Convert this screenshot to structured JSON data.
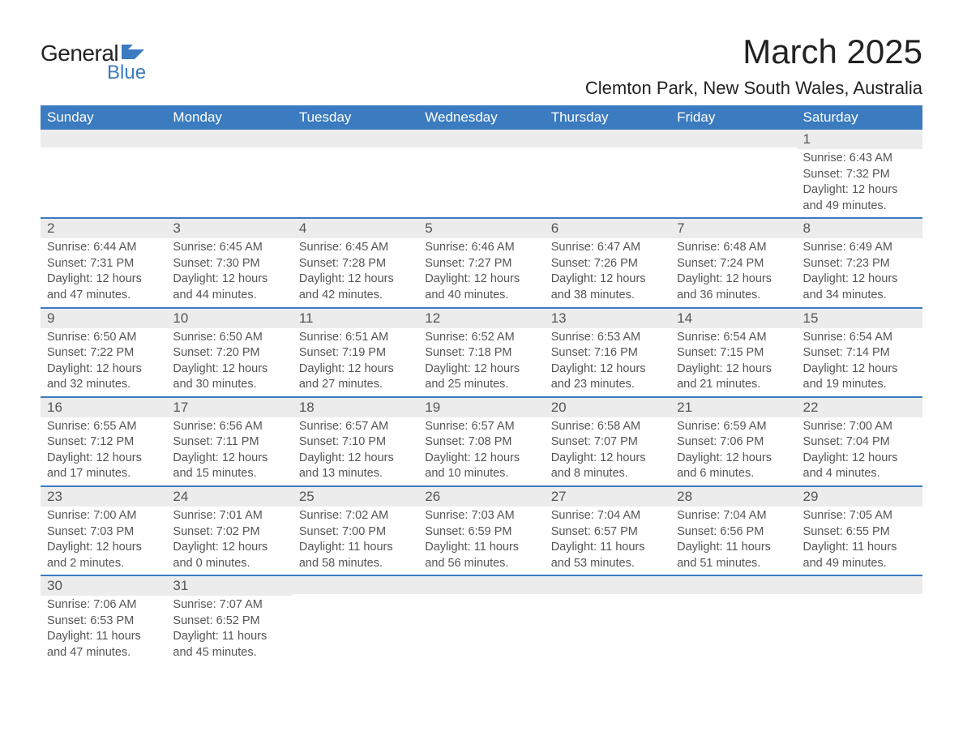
{
  "logo": {
    "general": "General",
    "blue": "Blue",
    "shape_color": "#3b7bbf"
  },
  "title": "March 2025",
  "location": "Clemton Park, New South Wales, Australia",
  "columns": [
    "Sunday",
    "Monday",
    "Tuesday",
    "Wednesday",
    "Thursday",
    "Friday",
    "Saturday"
  ],
  "colors": {
    "header_bg": "#3b7bbf",
    "header_fg": "#ffffff",
    "daynum_bg": "#ececec",
    "border": "#3b7bbf",
    "text": "#555555"
  },
  "weeks": [
    [
      {
        "day": "",
        "sunrise": "",
        "sunset": "",
        "daylight": ""
      },
      {
        "day": "",
        "sunrise": "",
        "sunset": "",
        "daylight": ""
      },
      {
        "day": "",
        "sunrise": "",
        "sunset": "",
        "daylight": ""
      },
      {
        "day": "",
        "sunrise": "",
        "sunset": "",
        "daylight": ""
      },
      {
        "day": "",
        "sunrise": "",
        "sunset": "",
        "daylight": ""
      },
      {
        "day": "",
        "sunrise": "",
        "sunset": "",
        "daylight": ""
      },
      {
        "day": "1",
        "sunrise": "Sunrise: 6:43 AM",
        "sunset": "Sunset: 7:32 PM",
        "daylight": "Daylight: 12 hours and 49 minutes."
      }
    ],
    [
      {
        "day": "2",
        "sunrise": "Sunrise: 6:44 AM",
        "sunset": "Sunset: 7:31 PM",
        "daylight": "Daylight: 12 hours and 47 minutes."
      },
      {
        "day": "3",
        "sunrise": "Sunrise: 6:45 AM",
        "sunset": "Sunset: 7:30 PM",
        "daylight": "Daylight: 12 hours and 44 minutes."
      },
      {
        "day": "4",
        "sunrise": "Sunrise: 6:45 AM",
        "sunset": "Sunset: 7:28 PM",
        "daylight": "Daylight: 12 hours and 42 minutes."
      },
      {
        "day": "5",
        "sunrise": "Sunrise: 6:46 AM",
        "sunset": "Sunset: 7:27 PM",
        "daylight": "Daylight: 12 hours and 40 minutes."
      },
      {
        "day": "6",
        "sunrise": "Sunrise: 6:47 AM",
        "sunset": "Sunset: 7:26 PM",
        "daylight": "Daylight: 12 hours and 38 minutes."
      },
      {
        "day": "7",
        "sunrise": "Sunrise: 6:48 AM",
        "sunset": "Sunset: 7:24 PM",
        "daylight": "Daylight: 12 hours and 36 minutes."
      },
      {
        "day": "8",
        "sunrise": "Sunrise: 6:49 AM",
        "sunset": "Sunset: 7:23 PM",
        "daylight": "Daylight: 12 hours and 34 minutes."
      }
    ],
    [
      {
        "day": "9",
        "sunrise": "Sunrise: 6:50 AM",
        "sunset": "Sunset: 7:22 PM",
        "daylight": "Daylight: 12 hours and 32 minutes."
      },
      {
        "day": "10",
        "sunrise": "Sunrise: 6:50 AM",
        "sunset": "Sunset: 7:20 PM",
        "daylight": "Daylight: 12 hours and 30 minutes."
      },
      {
        "day": "11",
        "sunrise": "Sunrise: 6:51 AM",
        "sunset": "Sunset: 7:19 PM",
        "daylight": "Daylight: 12 hours and 27 minutes."
      },
      {
        "day": "12",
        "sunrise": "Sunrise: 6:52 AM",
        "sunset": "Sunset: 7:18 PM",
        "daylight": "Daylight: 12 hours and 25 minutes."
      },
      {
        "day": "13",
        "sunrise": "Sunrise: 6:53 AM",
        "sunset": "Sunset: 7:16 PM",
        "daylight": "Daylight: 12 hours and 23 minutes."
      },
      {
        "day": "14",
        "sunrise": "Sunrise: 6:54 AM",
        "sunset": "Sunset: 7:15 PM",
        "daylight": "Daylight: 12 hours and 21 minutes."
      },
      {
        "day": "15",
        "sunrise": "Sunrise: 6:54 AM",
        "sunset": "Sunset: 7:14 PM",
        "daylight": "Daylight: 12 hours and 19 minutes."
      }
    ],
    [
      {
        "day": "16",
        "sunrise": "Sunrise: 6:55 AM",
        "sunset": "Sunset: 7:12 PM",
        "daylight": "Daylight: 12 hours and 17 minutes."
      },
      {
        "day": "17",
        "sunrise": "Sunrise: 6:56 AM",
        "sunset": "Sunset: 7:11 PM",
        "daylight": "Daylight: 12 hours and 15 minutes."
      },
      {
        "day": "18",
        "sunrise": "Sunrise: 6:57 AM",
        "sunset": "Sunset: 7:10 PM",
        "daylight": "Daylight: 12 hours and 13 minutes."
      },
      {
        "day": "19",
        "sunrise": "Sunrise: 6:57 AM",
        "sunset": "Sunset: 7:08 PM",
        "daylight": "Daylight: 12 hours and 10 minutes."
      },
      {
        "day": "20",
        "sunrise": "Sunrise: 6:58 AM",
        "sunset": "Sunset: 7:07 PM",
        "daylight": "Daylight: 12 hours and 8 minutes."
      },
      {
        "day": "21",
        "sunrise": "Sunrise: 6:59 AM",
        "sunset": "Sunset: 7:06 PM",
        "daylight": "Daylight: 12 hours and 6 minutes."
      },
      {
        "day": "22",
        "sunrise": "Sunrise: 7:00 AM",
        "sunset": "Sunset: 7:04 PM",
        "daylight": "Daylight: 12 hours and 4 minutes."
      }
    ],
    [
      {
        "day": "23",
        "sunrise": "Sunrise: 7:00 AM",
        "sunset": "Sunset: 7:03 PM",
        "daylight": "Daylight: 12 hours and 2 minutes."
      },
      {
        "day": "24",
        "sunrise": "Sunrise: 7:01 AM",
        "sunset": "Sunset: 7:02 PM",
        "daylight": "Daylight: 12 hours and 0 minutes."
      },
      {
        "day": "25",
        "sunrise": "Sunrise: 7:02 AM",
        "sunset": "Sunset: 7:00 PM",
        "daylight": "Daylight: 11 hours and 58 minutes."
      },
      {
        "day": "26",
        "sunrise": "Sunrise: 7:03 AM",
        "sunset": "Sunset: 6:59 PM",
        "daylight": "Daylight: 11 hours and 56 minutes."
      },
      {
        "day": "27",
        "sunrise": "Sunrise: 7:04 AM",
        "sunset": "Sunset: 6:57 PM",
        "daylight": "Daylight: 11 hours and 53 minutes."
      },
      {
        "day": "28",
        "sunrise": "Sunrise: 7:04 AM",
        "sunset": "Sunset: 6:56 PM",
        "daylight": "Daylight: 11 hours and 51 minutes."
      },
      {
        "day": "29",
        "sunrise": "Sunrise: 7:05 AM",
        "sunset": "Sunset: 6:55 PM",
        "daylight": "Daylight: 11 hours and 49 minutes."
      }
    ],
    [
      {
        "day": "30",
        "sunrise": "Sunrise: 7:06 AM",
        "sunset": "Sunset: 6:53 PM",
        "daylight": "Daylight: 11 hours and 47 minutes."
      },
      {
        "day": "31",
        "sunrise": "Sunrise: 7:07 AM",
        "sunset": "Sunset: 6:52 PM",
        "daylight": "Daylight: 11 hours and 45 minutes."
      },
      {
        "day": "",
        "sunrise": "",
        "sunset": "",
        "daylight": ""
      },
      {
        "day": "",
        "sunrise": "",
        "sunset": "",
        "daylight": ""
      },
      {
        "day": "",
        "sunrise": "",
        "sunset": "",
        "daylight": ""
      },
      {
        "day": "",
        "sunrise": "",
        "sunset": "",
        "daylight": ""
      },
      {
        "day": "",
        "sunrise": "",
        "sunset": "",
        "daylight": ""
      }
    ]
  ]
}
